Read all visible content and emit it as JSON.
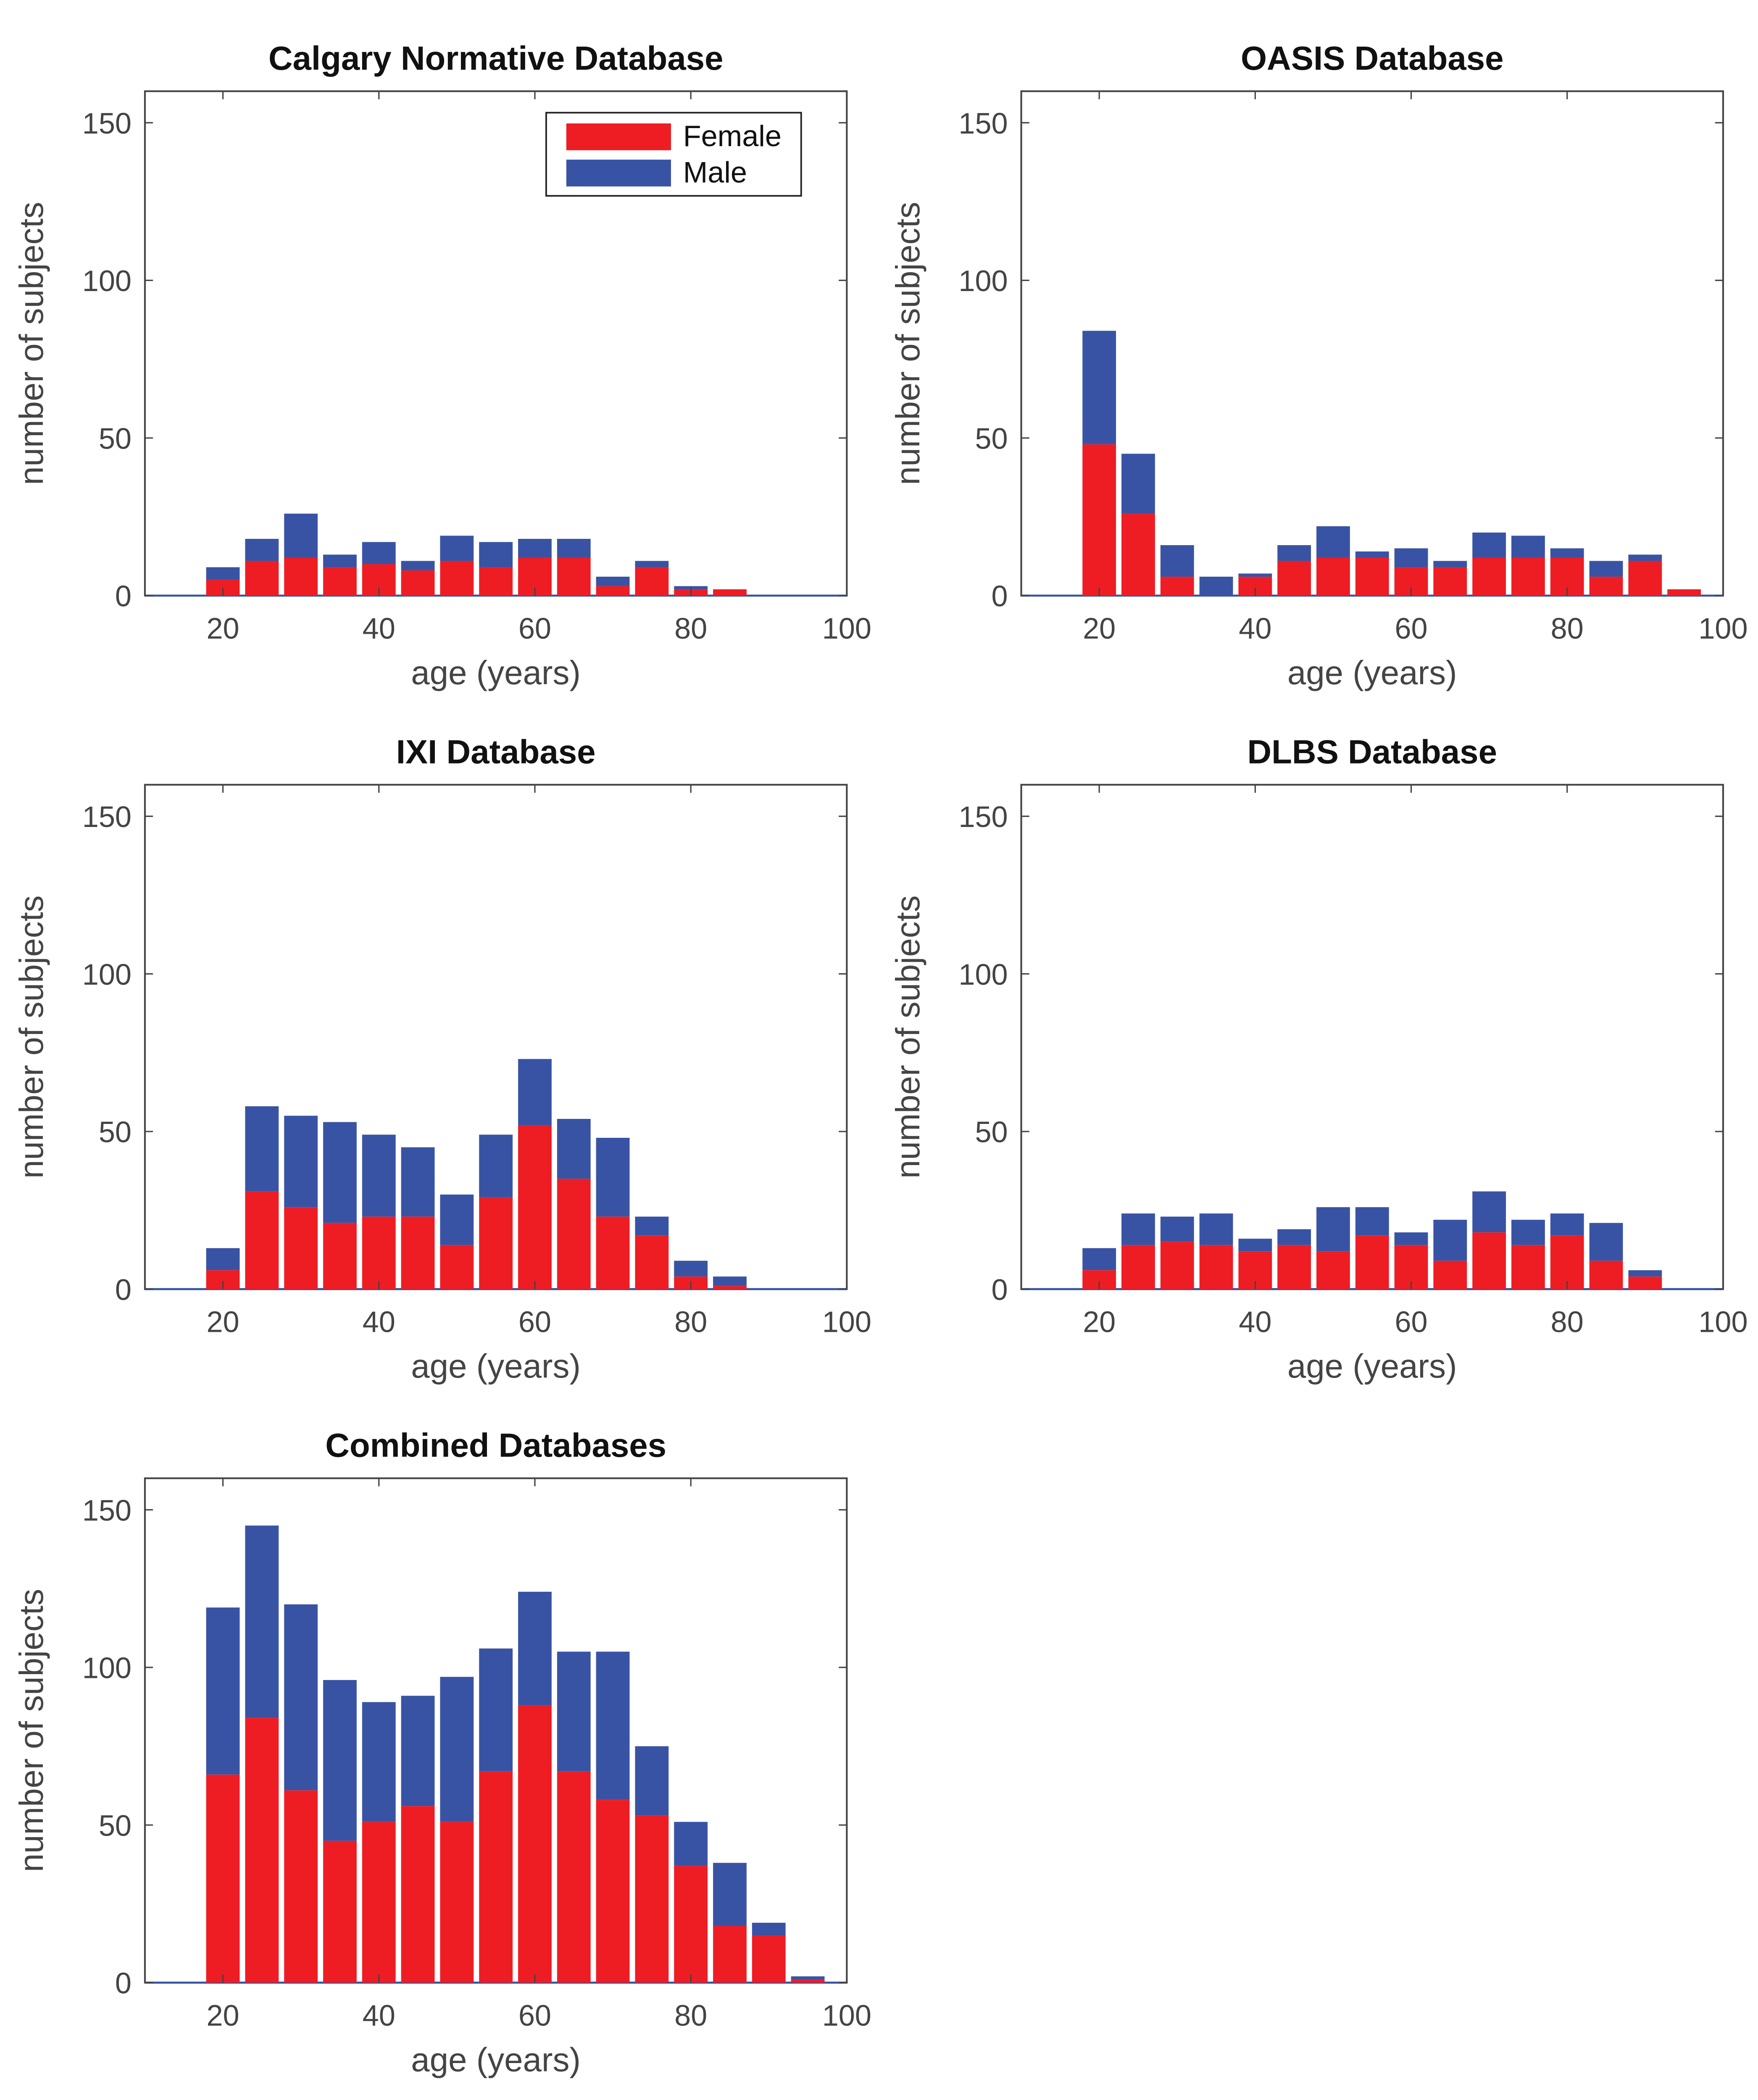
{
  "colors": {
    "female": "#ee1d24",
    "male": "#3953a4",
    "axis": "#444444"
  },
  "chart_data": [
    {
      "type": "bar",
      "stacked": true,
      "title": "Calgary Normative Database",
      "xlabel": "age (years)",
      "ylabel": "number of subjects",
      "xlim": [
        10,
        100
      ],
      "ylim": [
        0,
        160
      ],
      "xticks": [
        20,
        40,
        60,
        80,
        100
      ],
      "yticks": [
        0,
        50,
        100,
        150
      ],
      "legend": {
        "position": "top-right",
        "entries": [
          "Female",
          "Male"
        ]
      },
      "x": [
        20,
        25,
        30,
        35,
        40,
        45,
        50,
        55,
        60,
        65,
        70,
        75,
        80,
        85,
        90,
        95
      ],
      "series": [
        {
          "name": "Female",
          "values": [
            5,
            11,
            12,
            9,
            10,
            8,
            11,
            9,
            12,
            12,
            3,
            9,
            2,
            2,
            0,
            0
          ]
        },
        {
          "name": "Male",
          "values": [
            4,
            7,
            14,
            4,
            7,
            3,
            8,
            8,
            6,
            6,
            3,
            2,
            1,
            0,
            0,
            0
          ]
        }
      ]
    },
    {
      "type": "bar",
      "stacked": true,
      "title": "OASIS Database",
      "xlabel": "age (years)",
      "ylabel": "number of subjects",
      "xlim": [
        10,
        100
      ],
      "ylim": [
        0,
        160
      ],
      "xticks": [
        20,
        40,
        60,
        80,
        100
      ],
      "yticks": [
        0,
        50,
        100,
        150
      ],
      "x": [
        20,
        25,
        30,
        35,
        40,
        45,
        50,
        55,
        60,
        65,
        70,
        75,
        80,
        85,
        90,
        95
      ],
      "series": [
        {
          "name": "Female",
          "values": [
            48,
            26,
            6,
            0,
            6,
            11,
            12,
            12,
            9,
            9,
            12,
            12,
            12,
            6,
            11,
            2
          ]
        },
        {
          "name": "Male",
          "values": [
            36,
            19,
            10,
            6,
            1,
            5,
            10,
            2,
            6,
            2,
            8,
            7,
            3,
            5,
            2,
            0
          ]
        }
      ]
    },
    {
      "type": "bar",
      "stacked": true,
      "title": "IXI Database",
      "xlabel": "age (years)",
      "ylabel": "number of subjects",
      "xlim": [
        10,
        100
      ],
      "ylim": [
        0,
        160
      ],
      "xticks": [
        20,
        40,
        60,
        80,
        100
      ],
      "yticks": [
        0,
        50,
        100,
        150
      ],
      "x": [
        20,
        25,
        30,
        35,
        40,
        45,
        50,
        55,
        60,
        65,
        70,
        75,
        80,
        85,
        90,
        95
      ],
      "series": [
        {
          "name": "Female",
          "values": [
            6,
            31,
            26,
            21,
            23,
            23,
            14,
            29,
            52,
            35,
            23,
            17,
            4,
            1,
            0,
            0
          ]
        },
        {
          "name": "Male",
          "values": [
            7,
            27,
            29,
            32,
            26,
            22,
            16,
            20,
            21,
            19,
            25,
            6,
            5,
            3,
            0,
            0
          ]
        }
      ]
    },
    {
      "type": "bar",
      "stacked": true,
      "title": "DLBS Database",
      "xlabel": "age (years)",
      "ylabel": "number of subjects",
      "xlim": [
        10,
        100
      ],
      "ylim": [
        0,
        160
      ],
      "xticks": [
        20,
        40,
        60,
        80,
        100
      ],
      "yticks": [
        0,
        50,
        100,
        150
      ],
      "x": [
        20,
        25,
        30,
        35,
        40,
        45,
        50,
        55,
        60,
        65,
        70,
        75,
        80,
        85,
        90,
        95
      ],
      "series": [
        {
          "name": "Female",
          "values": [
            6,
            14,
            15,
            14,
            12,
            14,
            12,
            17,
            14,
            9,
            18,
            14,
            17,
            9,
            4,
            0
          ]
        },
        {
          "name": "Male",
          "values": [
            7,
            10,
            8,
            10,
            4,
            5,
            14,
            9,
            4,
            13,
            13,
            8,
            7,
            12,
            2,
            0
          ]
        }
      ]
    },
    {
      "type": "bar",
      "stacked": true,
      "title": "Combined Databases",
      "xlabel": "age (years)",
      "ylabel": "number of subjects",
      "xlim": [
        10,
        100
      ],
      "ylim": [
        0,
        160
      ],
      "xticks": [
        20,
        40,
        60,
        80,
        100
      ],
      "yticks": [
        0,
        50,
        100,
        150
      ],
      "x": [
        20,
        25,
        30,
        35,
        40,
        45,
        50,
        55,
        60,
        65,
        70,
        75,
        80,
        85,
        90,
        95
      ],
      "series": [
        {
          "name": "Female",
          "values": [
            66,
            84,
            61,
            45,
            51,
            56,
            51,
            67,
            88,
            67,
            58,
            53,
            37,
            18,
            15,
            1
          ]
        },
        {
          "name": "Male",
          "values": [
            53,
            61,
            59,
            51,
            38,
            35,
            46,
            39,
            36,
            38,
            47,
            22,
            14,
            20,
            4,
            1
          ]
        }
      ]
    }
  ]
}
